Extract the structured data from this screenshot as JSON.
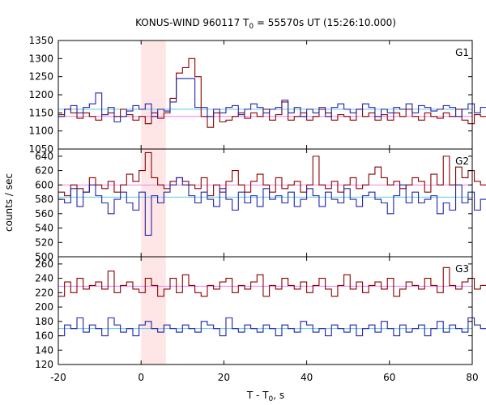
{
  "chart_data": {
    "type": "line",
    "title_main": "KONUS-WIND 960117 T",
    "title_sub": "0",
    "title_rest": " = 55570s UT (15:26:10.000)",
    "xlabel_main": "T - T",
    "xlabel_sub": "0",
    "xlabel_rest": ", s",
    "ylabel": "counts / sec",
    "xlim": [
      -20,
      80
    ],
    "x_ticks": [
      "-20",
      "0",
      "20",
      "40",
      "60",
      "80"
    ],
    "bin_width": 1.5,
    "x_start": -20,
    "highlight_interval": [
      0,
      6
    ],
    "colors": {
      "red": "#8b0000",
      "blue": "#2222aa",
      "bg_fit": "#ee82ee",
      "bg_fit_blue": "#5cc8ee",
      "highlight": "#ffe6e6"
    },
    "panels": [
      {
        "label": "G1",
        "ylim": [
          1050,
          1350
        ],
        "y_ticks": [
          1050,
          1100,
          1150,
          1200,
          1250,
          1300,
          1350
        ],
        "bg_levels": [
          1140,
          1160
        ],
        "red_values": [
          1145,
          1160,
          1150,
          1135,
          1150,
          1140,
          1130,
          1145,
          1150,
          1140,
          1160,
          1145,
          1130,
          1140,
          1120,
          1150,
          1135,
          1150,
          1190,
          1260,
          1275,
          1300,
          1250,
          1140,
          1110,
          1150,
          1125,
          1130,
          1140,
          1150,
          1135,
          1150,
          1140,
          1160,
          1130,
          1145,
          1180,
          1130,
          1140,
          1150,
          1130,
          1140,
          1160,
          1150,
          1130,
          1145,
          1140,
          1130,
          1160,
          1140,
          1150,
          1130,
          1145,
          1130,
          1150,
          1140,
          1160,
          1140,
          1130,
          1150,
          1140,
          1135,
          1150,
          1140,
          1160,
          1130,
          1120,
          1145,
          1140
        ],
        "blue_values": [
          1140,
          1160,
          1170,
          1150,
          1165,
          1175,
          1205,
          1145,
          1165,
          1125,
          1140,
          1155,
          1170,
          1160,
          1175,
          1140,
          1160,
          1155,
          1180,
          1245,
          1245,
          1245,
          1165,
          1165,
          1140,
          1160,
          1150,
          1165,
          1170,
          1145,
          1160,
          1175,
          1165,
          1150,
          1160,
          1165,
          1185,
          1150,
          1165,
          1140,
          1160,
          1150,
          1165,
          1140,
          1165,
          1175,
          1160,
          1150,
          1160,
          1175,
          1165,
          1140,
          1160,
          1150,
          1165,
          1160,
          1175,
          1150,
          1170,
          1165,
          1155,
          1160,
          1170,
          1165,
          1140,
          1160,
          1175,
          1150,
          1165
        ]
      },
      {
        "label": "G2",
        "ylim": [
          500,
          650
        ],
        "y_ticks": [
          500,
          520,
          540,
          560,
          580,
          600,
          620,
          640
        ],
        "bg_levels": [
          600,
          583
        ],
        "red_values": [
          590,
          585,
          600,
          595,
          590,
          610,
          600,
          595,
          605,
          590,
          600,
          615,
          605,
          620,
          645,
          610,
          600,
          595,
          605,
          610,
          605,
          600,
          595,
          610,
          585,
          600,
          590,
          605,
          620,
          600,
          590,
          605,
          615,
          600,
          590,
          610,
          595,
          600,
          605,
          590,
          600,
          640,
          600,
          595,
          605,
          590,
          600,
          610,
          595,
          600,
          615,
          625,
          610,
          600,
          605,
          595,
          600,
          610,
          605,
          590,
          615,
          600,
          640,
          600,
          625,
          610,
          620,
          605,
          600
        ],
        "blue_values": [
          580,
          575,
          595,
          570,
          590,
          600,
          585,
          575,
          560,
          580,
          590,
          575,
          565,
          590,
          530,
          585,
          575,
          590,
          600,
          610,
          600,
          585,
          575,
          590,
          580,
          570,
          595,
          580,
          565,
          590,
          575,
          585,
          570,
          595,
          580,
          585,
          575,
          590,
          570,
          580,
          595,
          585,
          570,
          590,
          580,
          575,
          595,
          580,
          570,
          585,
          590,
          580,
          575,
          560,
          585,
          600,
          575,
          590,
          575,
          580,
          585,
          560,
          575,
          565,
          600,
          575,
          590,
          565,
          580
        ]
      },
      {
        "label": "G3",
        "ylim": [
          120,
          270
        ],
        "y_ticks": [
          120,
          140,
          160,
          180,
          200,
          220,
          240,
          260
        ],
        "bg_levels": [
          229,
          170
        ],
        "red_values": [
          215,
          235,
          220,
          240,
          225,
          230,
          235,
          225,
          250,
          220,
          230,
          235,
          225,
          220,
          240,
          230,
          215,
          225,
          240,
          220,
          245,
          230,
          220,
          215,
          230,
          225,
          235,
          240,
          220,
          230,
          225,
          235,
          245,
          215,
          230,
          225,
          240,
          230,
          225,
          235,
          220,
          230,
          240,
          225,
          215,
          230,
          245,
          225,
          235,
          220,
          230,
          235,
          225,
          240,
          215,
          225,
          235,
          230,
          225,
          240,
          230,
          220,
          255,
          230,
          225,
          235,
          240,
          225,
          230
        ],
        "blue_values": [
          160,
          175,
          170,
          185,
          165,
          175,
          170,
          160,
          185,
          175,
          165,
          170,
          160,
          175,
          180,
          170,
          165,
          175,
          170,
          165,
          175,
          170,
          165,
          180,
          175,
          170,
          160,
          185,
          170,
          165,
          175,
          170,
          165,
          175,
          170,
          160,
          175,
          170,
          165,
          180,
          175,
          165,
          170,
          160,
          175,
          170,
          165,
          175,
          160,
          170,
          175,
          165,
          180,
          170,
          160,
          175,
          165,
          170,
          175,
          160,
          170,
          180,
          165,
          175,
          170,
          165,
          185,
          175,
          170
        ]
      }
    ]
  }
}
